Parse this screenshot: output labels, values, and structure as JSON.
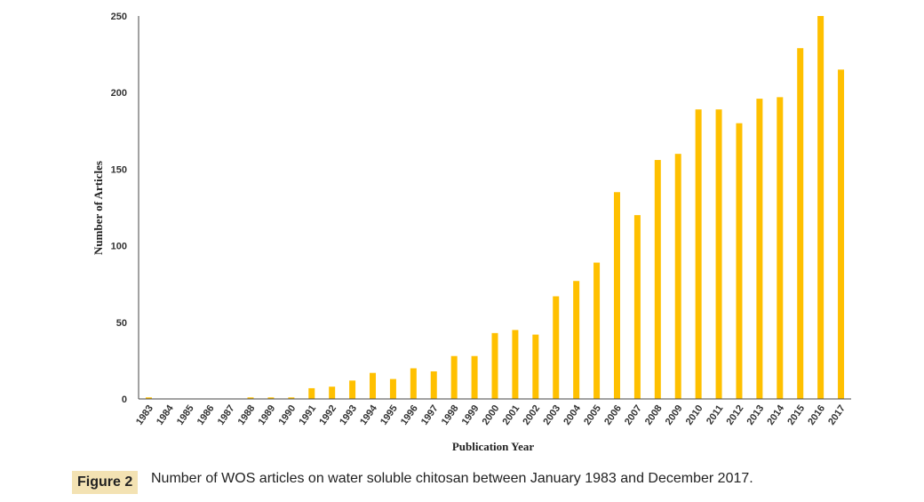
{
  "figure": {
    "label": "Figure 2",
    "caption": "Number of WOS articles on water soluble chitosan between January 1983 and December 2017."
  },
  "colors": {
    "bar": "#FFC000",
    "axis": "#444444"
  },
  "chart_data": {
    "type": "bar",
    "title": "",
    "xlabel": "Publication Year",
    "ylabel": "Number of Articles",
    "ylim": [
      0,
      250
    ],
    "yticks": [
      0,
      50,
      100,
      150,
      200,
      250
    ],
    "grid": false,
    "categories": [
      "1983",
      "1984",
      "1985",
      "1986",
      "1987",
      "1988",
      "1989",
      "1990",
      "1991",
      "1992",
      "1993",
      "1994",
      "1995",
      "1996",
      "1997",
      "1998",
      "1999",
      "2000",
      "2001",
      "2002",
      "2003",
      "2004",
      "2005",
      "2006",
      "2007",
      "2008",
      "2009",
      "2010",
      "2011",
      "2012",
      "2013",
      "2014",
      "2015",
      "2016",
      "2017"
    ],
    "values": [
      1,
      0,
      0,
      0,
      0,
      1,
      1,
      1,
      7,
      8,
      12,
      17,
      13,
      20,
      18,
      28,
      28,
      43,
      45,
      42,
      67,
      77,
      89,
      135,
      120,
      156,
      160,
      189,
      189,
      180,
      196,
      197,
      229,
      250,
      215
    ]
  }
}
